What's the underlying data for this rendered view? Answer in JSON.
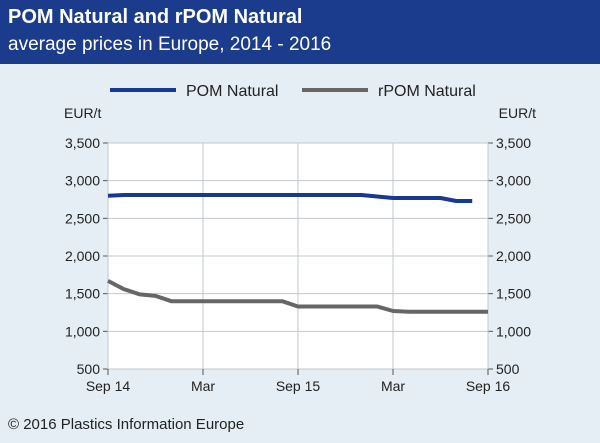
{
  "title": "POM Natural and rPOM Natural",
  "subtitle": "average prices in Europe, 2014 - 2016",
  "footer": "© 2016 Plastics Information Europe",
  "colors": {
    "header_bg": "#1b3c8c",
    "page_bg": "#e5eef4",
    "plot_bg": "#ffffff",
    "pom": "#173994",
    "rpom": "#666666"
  },
  "chart_data": {
    "type": "line",
    "y_unit_left": "EUR/t",
    "y_unit_right": "EUR/t",
    "ylim": [
      500,
      3500
    ],
    "y_ticks": [
      500,
      1000,
      1500,
      2000,
      2500,
      3000,
      3500
    ],
    "y_tick_labels": [
      "500",
      "1,000",
      "1,500",
      "2,000",
      "2,500",
      "3,000",
      "3,500"
    ],
    "xlim": [
      "2014-09",
      "2016-09"
    ],
    "x_ticks": [
      "2014-09",
      "2015-03",
      "2015-09",
      "2016-03",
      "2016-09"
    ],
    "x_tick_labels": [
      "Sep 14",
      "Mar",
      "Sep 15",
      "Mar",
      "Sep 16"
    ],
    "grid": true,
    "legend_position": "top",
    "series": [
      {
        "name": "POM Natural",
        "color": "#173994",
        "points": [
          [
            "2014-09",
            2800
          ],
          [
            "2014-10",
            2810
          ],
          [
            "2014-11",
            2810
          ],
          [
            "2014-12",
            2810
          ],
          [
            "2015-01",
            2810
          ],
          [
            "2015-02",
            2810
          ],
          [
            "2015-03",
            2810
          ],
          [
            "2015-04",
            2810
          ],
          [
            "2015-05",
            2810
          ],
          [
            "2015-06",
            2810
          ],
          [
            "2015-07",
            2810
          ],
          [
            "2015-08",
            2810
          ],
          [
            "2015-09",
            2810
          ],
          [
            "2015-10",
            2810
          ],
          [
            "2015-11",
            2810
          ],
          [
            "2015-12",
            2810
          ],
          [
            "2016-01",
            2810
          ],
          [
            "2016-02",
            2790
          ],
          [
            "2016-03",
            2770
          ],
          [
            "2016-04",
            2770
          ],
          [
            "2016-05",
            2770
          ],
          [
            "2016-06",
            2770
          ],
          [
            "2016-07",
            2730
          ],
          [
            "2016-08",
            2730
          ]
        ]
      },
      {
        "name": "rPOM Natural",
        "color": "#666666",
        "points": [
          [
            "2014-09",
            1670
          ],
          [
            "2014-10",
            1560
          ],
          [
            "2014-11",
            1490
          ],
          [
            "2014-12",
            1470
          ],
          [
            "2015-01",
            1400
          ],
          [
            "2015-02",
            1400
          ],
          [
            "2015-03",
            1400
          ],
          [
            "2015-04",
            1400
          ],
          [
            "2015-05",
            1400
          ],
          [
            "2015-06",
            1400
          ],
          [
            "2015-07",
            1400
          ],
          [
            "2015-08",
            1400
          ],
          [
            "2015-09",
            1330
          ],
          [
            "2015-10",
            1330
          ],
          [
            "2015-11",
            1330
          ],
          [
            "2015-12",
            1330
          ],
          [
            "2016-01",
            1330
          ],
          [
            "2016-02",
            1330
          ],
          [
            "2016-03",
            1270
          ],
          [
            "2016-04",
            1260
          ],
          [
            "2016-05",
            1260
          ],
          [
            "2016-06",
            1260
          ],
          [
            "2016-07",
            1260
          ],
          [
            "2016-08",
            1260
          ],
          [
            "2016-09",
            1260
          ]
        ]
      }
    ]
  }
}
